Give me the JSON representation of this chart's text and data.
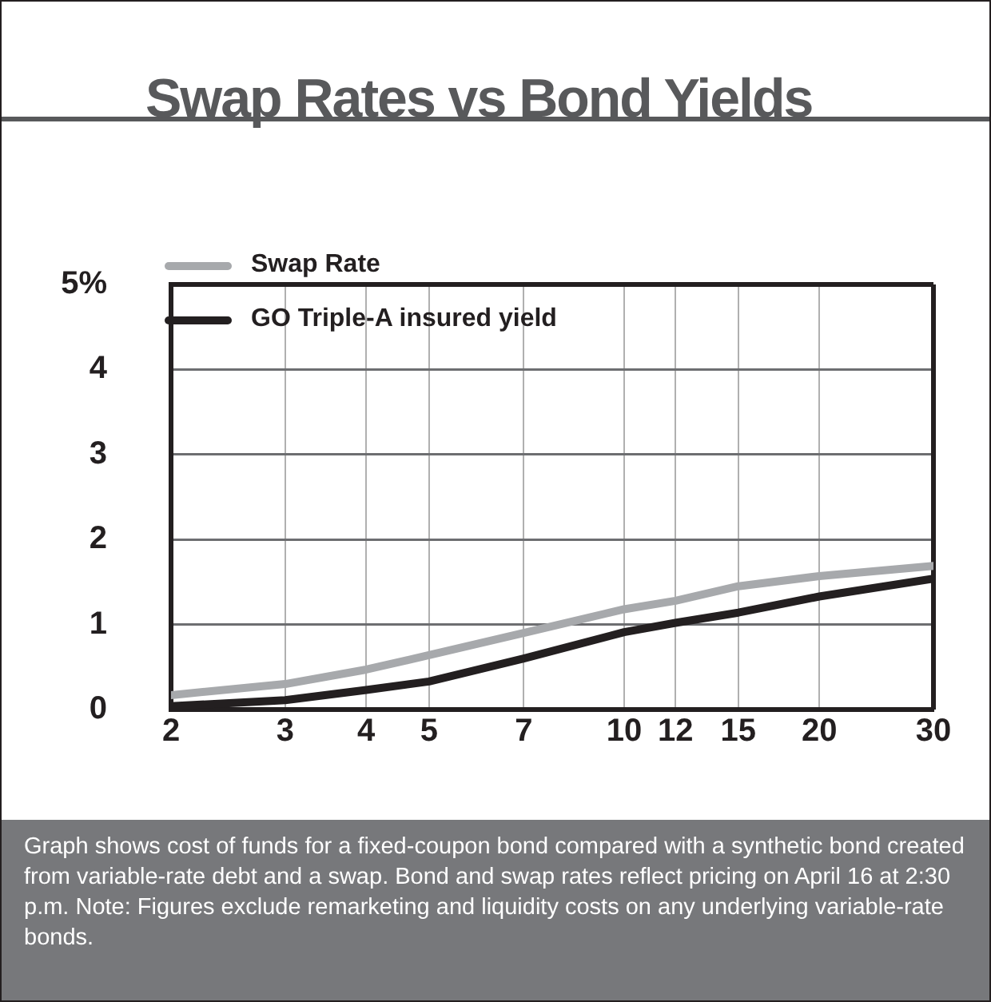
{
  "chart_data": {
    "type": "line",
    "title": "Swap Rates vs Bond Yields",
    "x": [
      2,
      3,
      4,
      5,
      7,
      10,
      12,
      15,
      20,
      30
    ],
    "series": [
      {
        "name": "Swap Rate",
        "color": "#a7a9ac",
        "values": [
          0.17,
          0.3,
          0.47,
          0.64,
          0.9,
          1.18,
          1.28,
          1.45,
          1.57,
          1.69
        ]
      },
      {
        "name": "GO Triple-A insured yield",
        "color": "#231f20",
        "values": [
          0.04,
          0.11,
          0.23,
          0.33,
          0.6,
          0.91,
          1.02,
          1.14,
          1.33,
          1.54
        ]
      }
    ],
    "log": "x",
    "xlim": [
      2,
      30
    ],
    "xticks": [
      2,
      3,
      4,
      5,
      7,
      10,
      12,
      15,
      20,
      30
    ],
    "ylim": [
      0,
      5
    ],
    "yticks": [
      0,
      1,
      2,
      3,
      4,
      {
        "value": 5,
        "label": "5%"
      }
    ],
    "grid": true,
    "legend": "top left",
    "marker": "none",
    "line_style": "solid",
    "annotations": [
      "Graph shows cost of funds for a fixed-coupon bond compared with a synthetic bond created from variable-rate debt and a swap. Bond and swap rates reflect pricing on April 16 at 2:30 p.m. Note: Figures exclude remarketing and liquidity costs on any underlying variable-rate bonds."
    ]
  }
}
